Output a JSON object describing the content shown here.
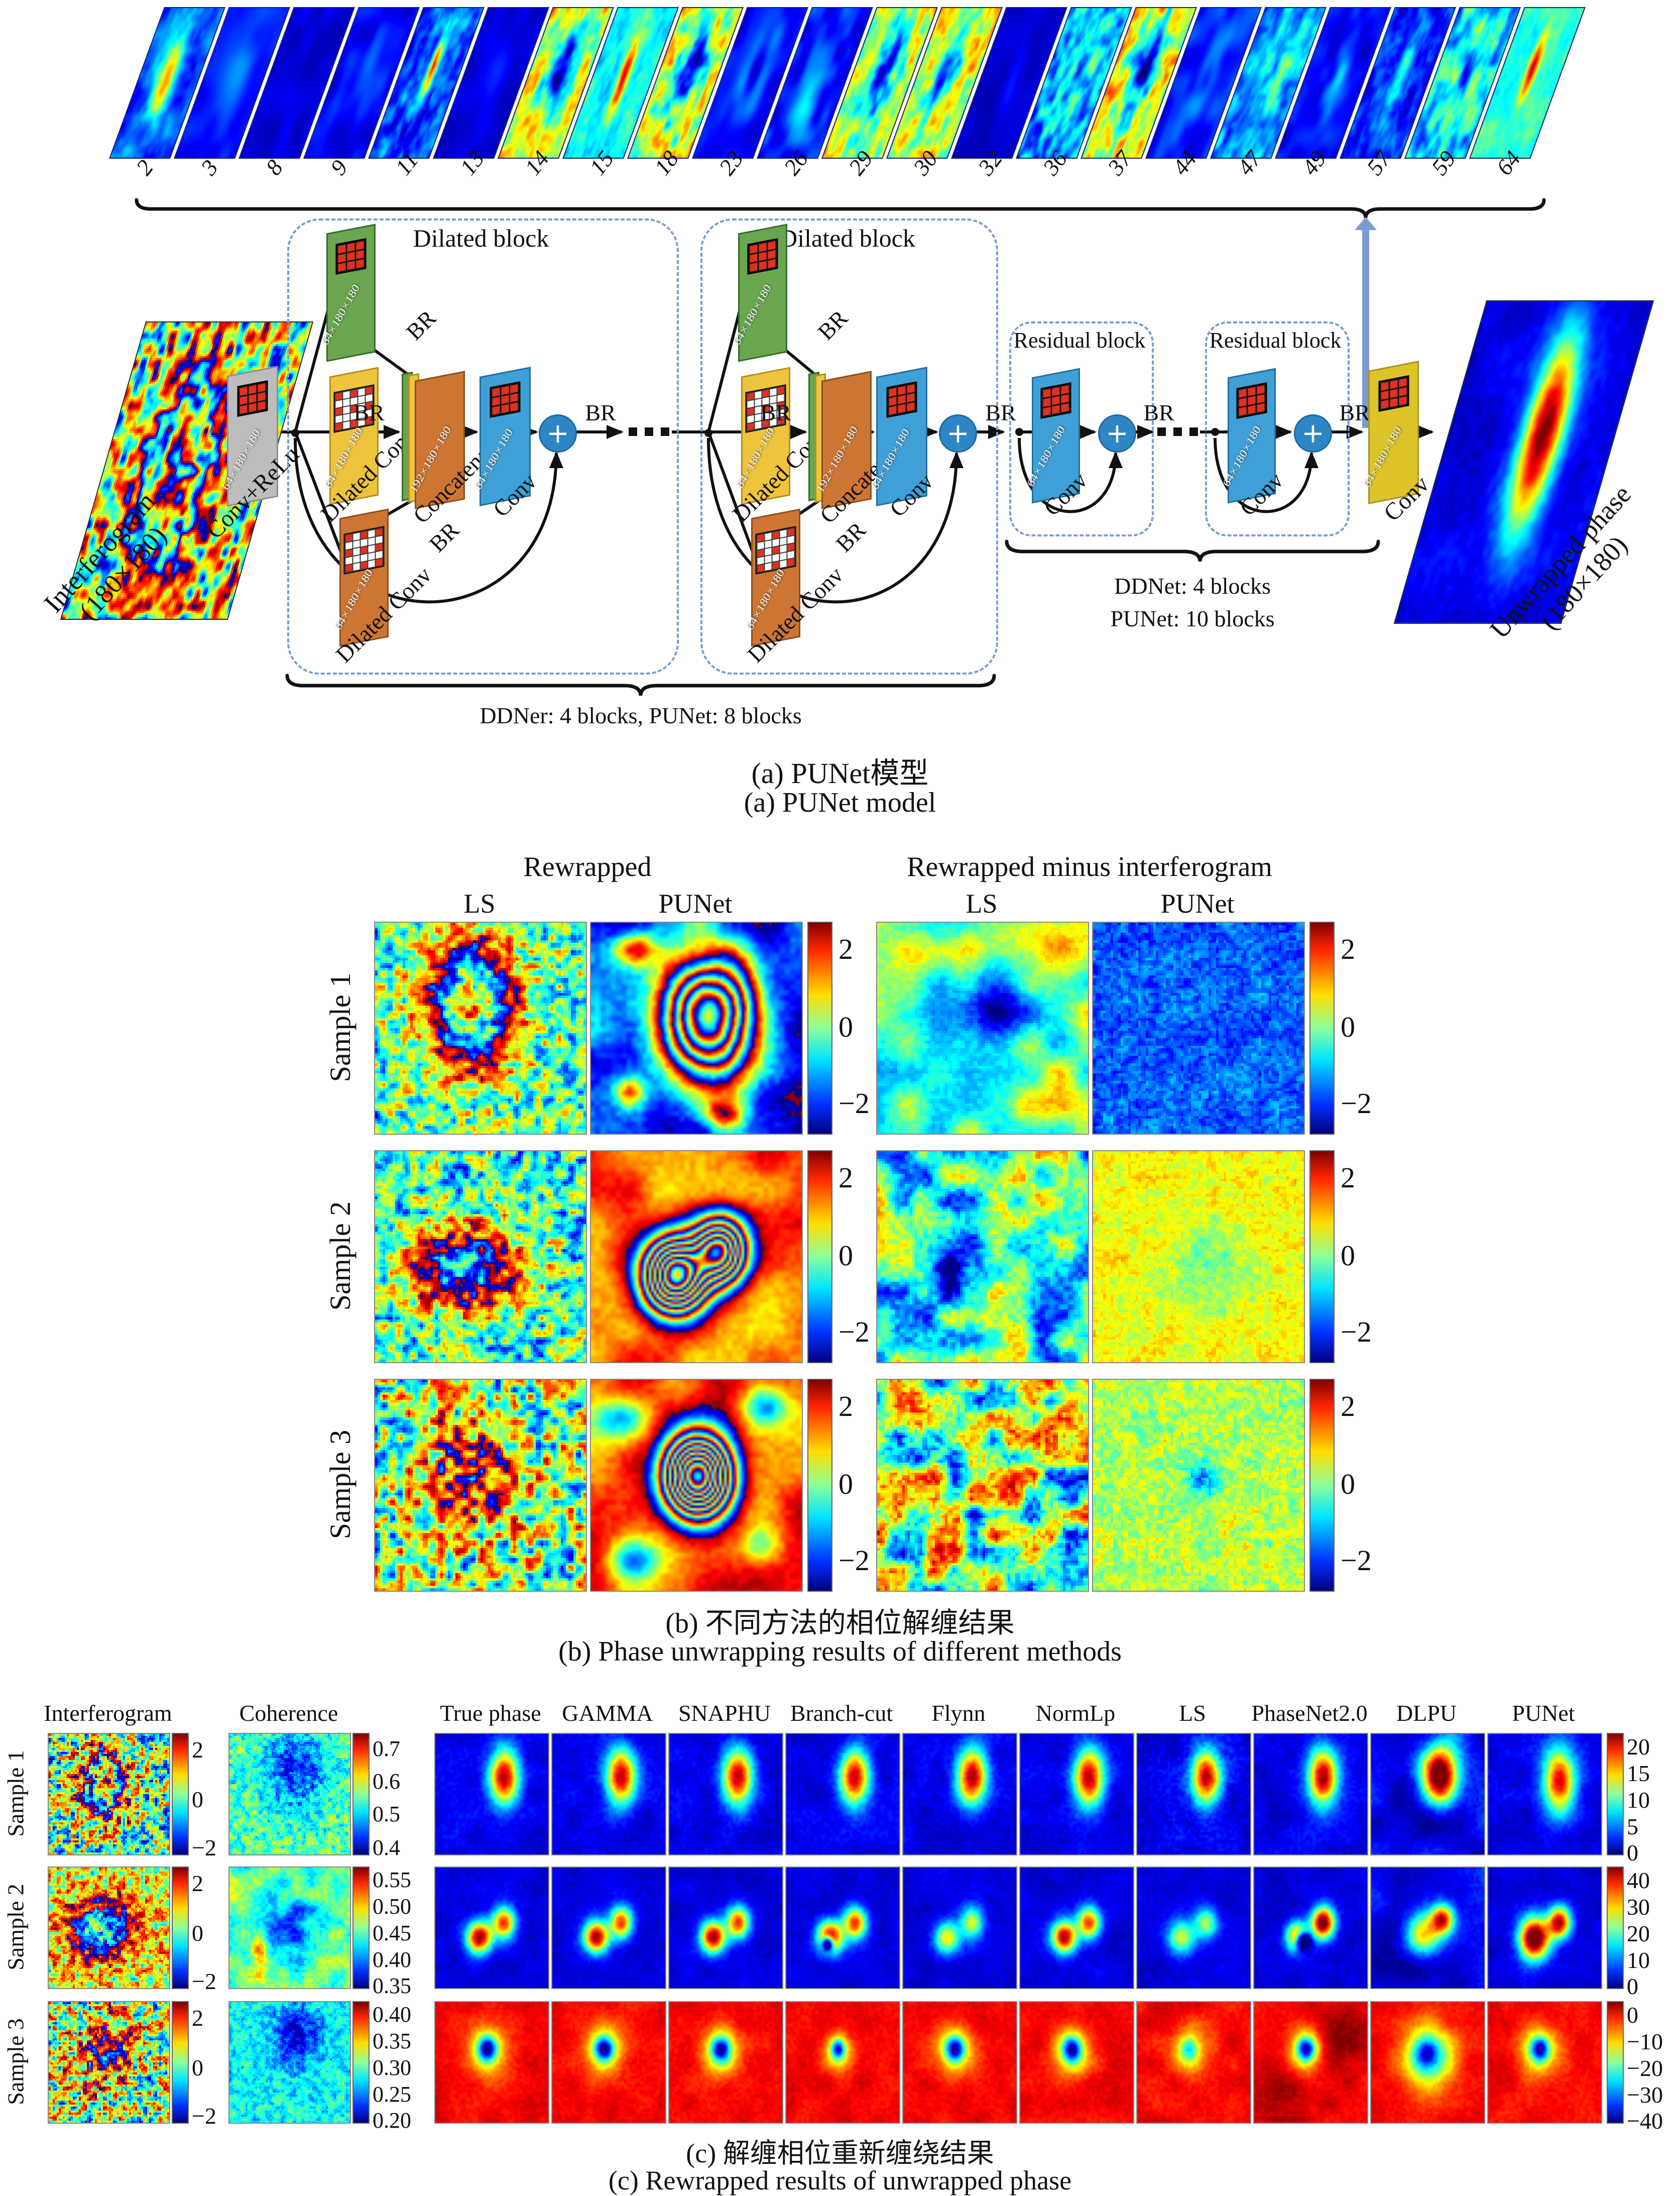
{
  "figure": {
    "panel_a": {
      "caption_zh": "(a) PUNet模型",
      "caption_en": "(a) PUNet model",
      "feature_map_channels": [
        "2",
        "3",
        "8",
        "9",
        "11",
        "13",
        "14",
        "15",
        "18",
        "23",
        "26",
        "29",
        "30",
        "32",
        "36",
        "37",
        "44",
        "47",
        "49",
        "57",
        "59",
        "64"
      ],
      "input_label": "Interferogram",
      "input_size": "(180×180)",
      "conv_relu_label": "Conv+ReLu",
      "layer_dim": "64×180×180",
      "concat_dim": "192×180×180",
      "conv_label": "Conv",
      "dilated_conv_label": "Dilated Conv",
      "concatenate_label": "Concatenate",
      "br_label": "BR",
      "dilated_block_title": "Dilated block",
      "residual_block_title": "Residual block",
      "dilated_brace_text": "DDNer: 4 blocks, PUNet: 8 blocks",
      "residual_brace_line1": "DDNet: 4 blocks",
      "residual_brace_line2": "PUNet: 10 blocks",
      "output_label": "Unwrapped phase",
      "output_size": "(180×180)"
    },
    "panel_b": {
      "caption_zh": "(b) 不同方法的相位解缠结果",
      "caption_en": "(b) Phase unwrapping results of different methods",
      "group1_title": "Rewrapped",
      "group2_title": "Rewrapped minus interferogram",
      "column_labels": [
        "LS",
        "PUNet",
        "LS",
        "PUNet"
      ],
      "row_labels": [
        "Sample 1",
        "Sample 2",
        "Sample 3"
      ],
      "colorbar_ticks": [
        "2",
        "0",
        "−2"
      ]
    },
    "panel_c": {
      "caption_zh": "(c) 解缠相位重新缠绕结果",
      "caption_en": "(c) Rewrapped results of unwrapped phase",
      "column_headers": [
        "Interferogram",
        "Coherence",
        "True phase",
        "GAMMA",
        "SNAPHU",
        "Branch-cut",
        "Flynn",
        "NormLp",
        "LS",
        "PhaseNet2.0",
        "DLPU",
        "PUNet"
      ],
      "rows": [
        {
          "label": "Sample 1",
          "interferogram_ticks": [
            "2",
            "0",
            "−2"
          ],
          "coherence_ticks": [
            "0.7",
            "0.6",
            "0.5",
            "0.4"
          ],
          "phase_ticks": [
            "20",
            "15",
            "10",
            "5",
            "0"
          ]
        },
        {
          "label": "Sample 2",
          "interferogram_ticks": [
            "2",
            "0",
            "−2"
          ],
          "coherence_ticks": [
            "0.55",
            "0.50",
            "0.45",
            "0.40",
            "0.35"
          ],
          "phase_ticks": [
            "40",
            "30",
            "20",
            "10",
            "0"
          ]
        },
        {
          "label": "Sample 3",
          "interferogram_ticks": [
            "2",
            "0",
            "−2"
          ],
          "coherence_ticks": [
            "0.40",
            "0.35",
            "0.30",
            "0.25",
            "0.20"
          ],
          "phase_ticks": [
            "0",
            "−10",
            "−20",
            "−30",
            "−40"
          ]
        }
      ]
    },
    "colors": {
      "dashed_block": "#7b9cd0",
      "arrow_blue": "#7b9cd0",
      "kernel_red": "#e03020",
      "plus_blue": "#2e86c5"
    }
  }
}
